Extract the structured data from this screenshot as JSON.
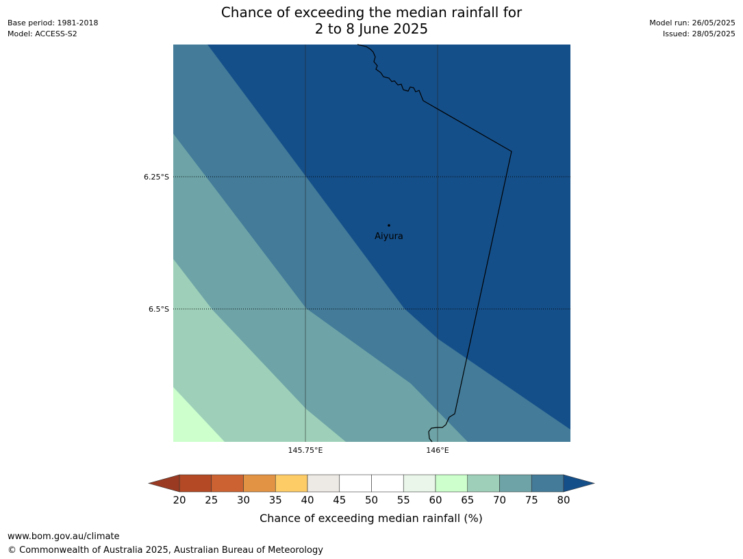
{
  "header": {
    "title_line1": "Chance of exceeding the median rainfall for",
    "title_line2": "2 to 8 June 2025",
    "base_period": "Base period: 1981-2018",
    "model": "Model: ACCESS-S2",
    "model_run": "Model run: 26/05/2025",
    "issued": "Issued: 28/05/2025"
  },
  "map": {
    "lat_labels": [
      "6.25°S",
      "6.5°S"
    ],
    "lon_labels": [
      "145.75°E",
      "146°E"
    ],
    "place": "Aiyura",
    "band_colors": [
      "#ccffcc",
      "#9ed0b9",
      "#6ea4a7",
      "#437b99",
      "#154f89"
    ]
  },
  "colorbar": {
    "label": "Chance of exceeding median rainfall (%)",
    "ticks": [
      "20",
      "25",
      "30",
      "35",
      "40",
      "45",
      "50",
      "55",
      "60",
      "65",
      "70",
      "75",
      "80"
    ],
    "low_extend_color": "#9a3a22",
    "high_extend_color": "#154f89",
    "colors": [
      "#b34a25",
      "#cc6231",
      "#e29444",
      "#fecc67",
      "#ede9e4",
      "#ffffff",
      "#ffffff",
      "#e9f6e9",
      "#ccffcc",
      "#9ed0b9",
      "#6ea4a7",
      "#437b99"
    ]
  },
  "footer": {
    "url": "www.bom.gov.au/climate",
    "copyright": "© Commonwealth of Australia 2025, Australian Bureau of Meteorology"
  }
}
